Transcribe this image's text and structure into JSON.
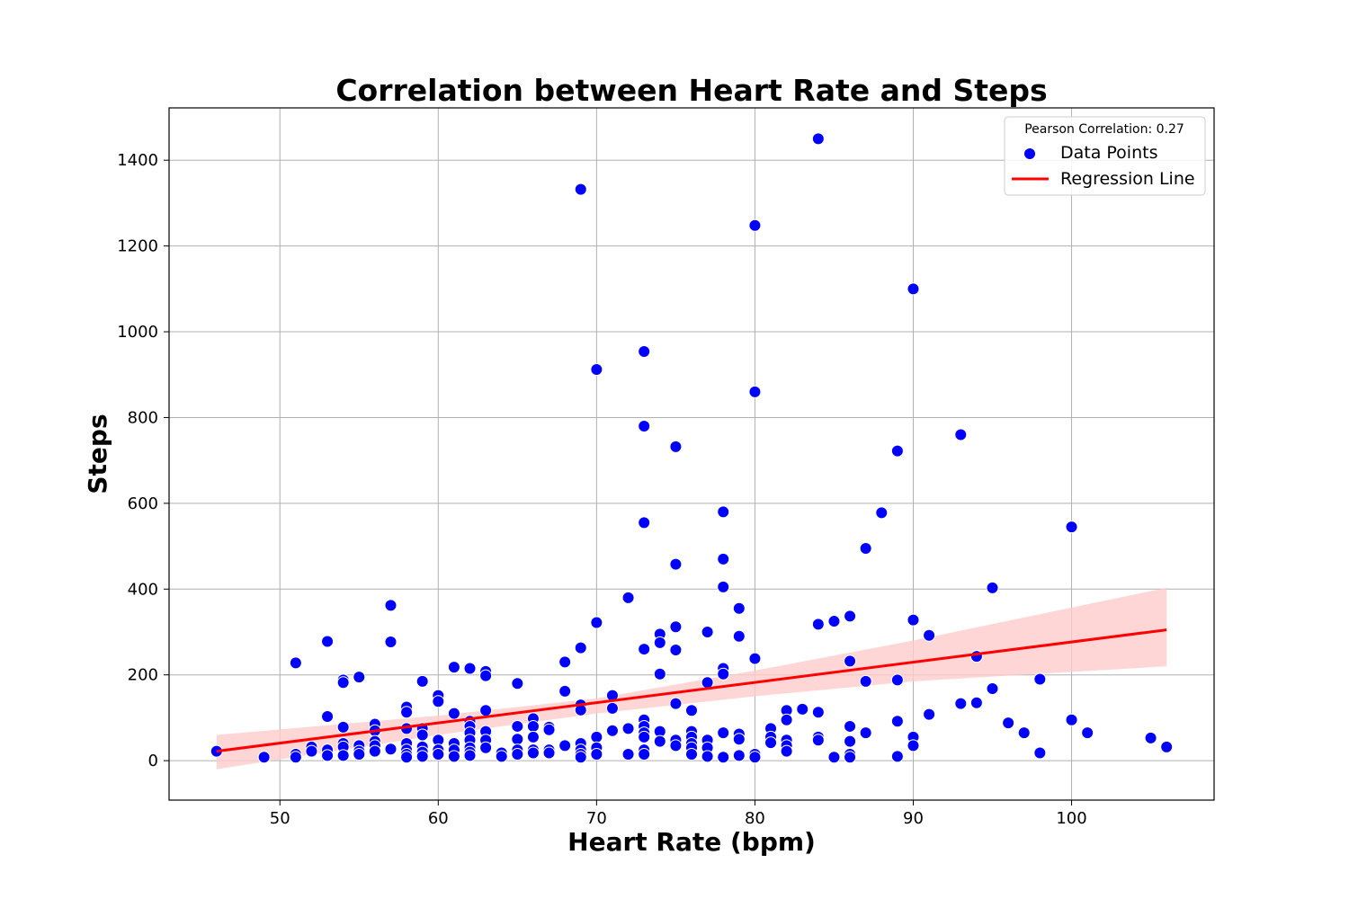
{
  "chart_data": {
    "type": "scatter",
    "title": "Correlation between Heart Rate and Steps",
    "xlabel": "Heart Rate (bpm)",
    "ylabel": "Steps",
    "xlim": [
      43,
      109
    ],
    "ylim": [
      -92,
      1522
    ],
    "xticks": [
      50,
      60,
      70,
      80,
      90,
      100
    ],
    "yticks": [
      0,
      200,
      400,
      600,
      800,
      1000,
      1200,
      1400
    ],
    "grid": true,
    "legend": {
      "placement": "top-right",
      "title": "Pearson Correlation: 0.27",
      "entries": [
        {
          "label": "Data Points",
          "marker": "circle",
          "color": "#0000ff"
        },
        {
          "label": "Regression Line",
          "marker": "line",
          "color": "#ff0000"
        }
      ]
    },
    "colors": {
      "points": "#0000ff",
      "regression": "#ff0000",
      "band": "#ffcccc"
    },
    "regression": {
      "x": [
        46,
        106
      ],
      "y": [
        22,
        305
      ]
    },
    "confidence_band": {
      "x": [
        46,
        60,
        70,
        80,
        90,
        106
      ],
      "lower": [
        -20,
        60,
        110,
        150,
        185,
        220
      ],
      "upper": [
        60,
        105,
        145,
        210,
        280,
        403
      ]
    },
    "series": [
      {
        "name": "Data Points",
        "points": [
          [
            46,
            22
          ],
          [
            49,
            8
          ],
          [
            51,
            228
          ],
          [
            51,
            15
          ],
          [
            51,
            8
          ],
          [
            52,
            32
          ],
          [
            52,
            22
          ],
          [
            53,
            278
          ],
          [
            53,
            103
          ],
          [
            53,
            25
          ],
          [
            53,
            12
          ],
          [
            54,
            188
          ],
          [
            54,
            182
          ],
          [
            54,
            78
          ],
          [
            54,
            40
          ],
          [
            54,
            32
          ],
          [
            54,
            12
          ],
          [
            55,
            195
          ],
          [
            55,
            35
          ],
          [
            55,
            22
          ],
          [
            55,
            15
          ],
          [
            56,
            85
          ],
          [
            56,
            70
          ],
          [
            56,
            45
          ],
          [
            56,
            35
          ],
          [
            56,
            22
          ],
          [
            57,
            362
          ],
          [
            57,
            277
          ],
          [
            57,
            27
          ],
          [
            58,
            125
          ],
          [
            58,
            113
          ],
          [
            58,
            75
          ],
          [
            58,
            40
          ],
          [
            58,
            25
          ],
          [
            58,
            15
          ],
          [
            58,
            8
          ],
          [
            59,
            185
          ],
          [
            59,
            75
          ],
          [
            59,
            60
          ],
          [
            59,
            32
          ],
          [
            59,
            20
          ],
          [
            59,
            10
          ],
          [
            60,
            152
          ],
          [
            60,
            138
          ],
          [
            60,
            48
          ],
          [
            60,
            25
          ],
          [
            60,
            15
          ],
          [
            61,
            218
          ],
          [
            61,
            110
          ],
          [
            61,
            40
          ],
          [
            61,
            25
          ],
          [
            61,
            10
          ],
          [
            62,
            215
          ],
          [
            62,
            92
          ],
          [
            62,
            80
          ],
          [
            62,
            65
          ],
          [
            62,
            48
          ],
          [
            62,
            30
          ],
          [
            62,
            20
          ],
          [
            62,
            12
          ],
          [
            63,
            208
          ],
          [
            63,
            198
          ],
          [
            63,
            117
          ],
          [
            63,
            68
          ],
          [
            63,
            48
          ],
          [
            63,
            30
          ],
          [
            64,
            18
          ],
          [
            64,
            10
          ],
          [
            65,
            180
          ],
          [
            65,
            80
          ],
          [
            65,
            50
          ],
          [
            65,
            25
          ],
          [
            65,
            15
          ],
          [
            66,
            98
          ],
          [
            66,
            80
          ],
          [
            66,
            55
          ],
          [
            66,
            25
          ],
          [
            66,
            18
          ],
          [
            67,
            78
          ],
          [
            67,
            72
          ],
          [
            67,
            25
          ],
          [
            67,
            18
          ],
          [
            68,
            230
          ],
          [
            68,
            162
          ],
          [
            68,
            35
          ],
          [
            69,
            1332
          ],
          [
            69,
            263
          ],
          [
            69,
            130
          ],
          [
            69,
            118
          ],
          [
            69,
            40
          ],
          [
            69,
            25
          ],
          [
            69,
            15
          ],
          [
            69,
            8
          ],
          [
            70,
            912
          ],
          [
            70,
            322
          ],
          [
            70,
            55
          ],
          [
            70,
            30
          ],
          [
            70,
            15
          ],
          [
            71,
            152
          ],
          [
            71,
            122
          ],
          [
            71,
            70
          ],
          [
            72,
            380
          ],
          [
            72,
            75
          ],
          [
            72,
            15
          ],
          [
            73,
            954
          ],
          [
            73,
            780
          ],
          [
            73,
            555
          ],
          [
            73,
            260
          ],
          [
            73,
            95
          ],
          [
            73,
            80
          ],
          [
            73,
            65
          ],
          [
            73,
            55
          ],
          [
            73,
            25
          ],
          [
            73,
            15
          ],
          [
            74,
            295
          ],
          [
            74,
            275
          ],
          [
            74,
            202
          ],
          [
            74,
            68
          ],
          [
            74,
            45
          ],
          [
            75,
            732
          ],
          [
            75,
            458
          ],
          [
            75,
            312
          ],
          [
            75,
            258
          ],
          [
            75,
            133
          ],
          [
            75,
            48
          ],
          [
            75,
            35
          ],
          [
            76,
            117
          ],
          [
            76,
            68
          ],
          [
            76,
            55
          ],
          [
            76,
            40
          ],
          [
            76,
            30
          ],
          [
            76,
            15
          ],
          [
            77,
            300
          ],
          [
            77,
            182
          ],
          [
            77,
            48
          ],
          [
            77,
            30
          ],
          [
            77,
            10
          ],
          [
            78,
            580
          ],
          [
            78,
            470
          ],
          [
            78,
            405
          ],
          [
            78,
            215
          ],
          [
            78,
            202
          ],
          [
            78,
            65
          ],
          [
            78,
            8
          ],
          [
            79,
            355
          ],
          [
            79,
            290
          ],
          [
            79,
            62
          ],
          [
            79,
            50
          ],
          [
            79,
            12
          ],
          [
            80,
            1248
          ],
          [
            80,
            860
          ],
          [
            80,
            238
          ],
          [
            80,
            15
          ],
          [
            80,
            8
          ],
          [
            81,
            75
          ],
          [
            81,
            55
          ],
          [
            81,
            42
          ],
          [
            82,
            117
          ],
          [
            82,
            95
          ],
          [
            82,
            48
          ],
          [
            82,
            35
          ],
          [
            82,
            22
          ],
          [
            83,
            120
          ],
          [
            84,
            1450
          ],
          [
            84,
            318
          ],
          [
            84,
            113
          ],
          [
            84,
            55
          ],
          [
            84,
            48
          ],
          [
            85,
            325
          ],
          [
            85,
            8
          ],
          [
            86,
            337
          ],
          [
            86,
            232
          ],
          [
            86,
            80
          ],
          [
            86,
            45
          ],
          [
            86,
            15
          ],
          [
            86,
            8
          ],
          [
            87,
            495
          ],
          [
            87,
            185
          ],
          [
            87,
            65
          ],
          [
            88,
            578
          ],
          [
            89,
            722
          ],
          [
            89,
            188
          ],
          [
            89,
            92
          ],
          [
            89,
            10
          ],
          [
            90,
            1100
          ],
          [
            90,
            328
          ],
          [
            90,
            55
          ],
          [
            90,
            35
          ],
          [
            91,
            292
          ],
          [
            91,
            108
          ],
          [
            93,
            760
          ],
          [
            93,
            133
          ],
          [
            94,
            243
          ],
          [
            94,
            135
          ],
          [
            95,
            403
          ],
          [
            95,
            168
          ],
          [
            96,
            88
          ],
          [
            97,
            65
          ],
          [
            98,
            190
          ],
          [
            98,
            18
          ],
          [
            100,
            545
          ],
          [
            100,
            95
          ],
          [
            101,
            65
          ],
          [
            105,
            53
          ],
          [
            106,
            32
          ]
        ]
      }
    ]
  }
}
